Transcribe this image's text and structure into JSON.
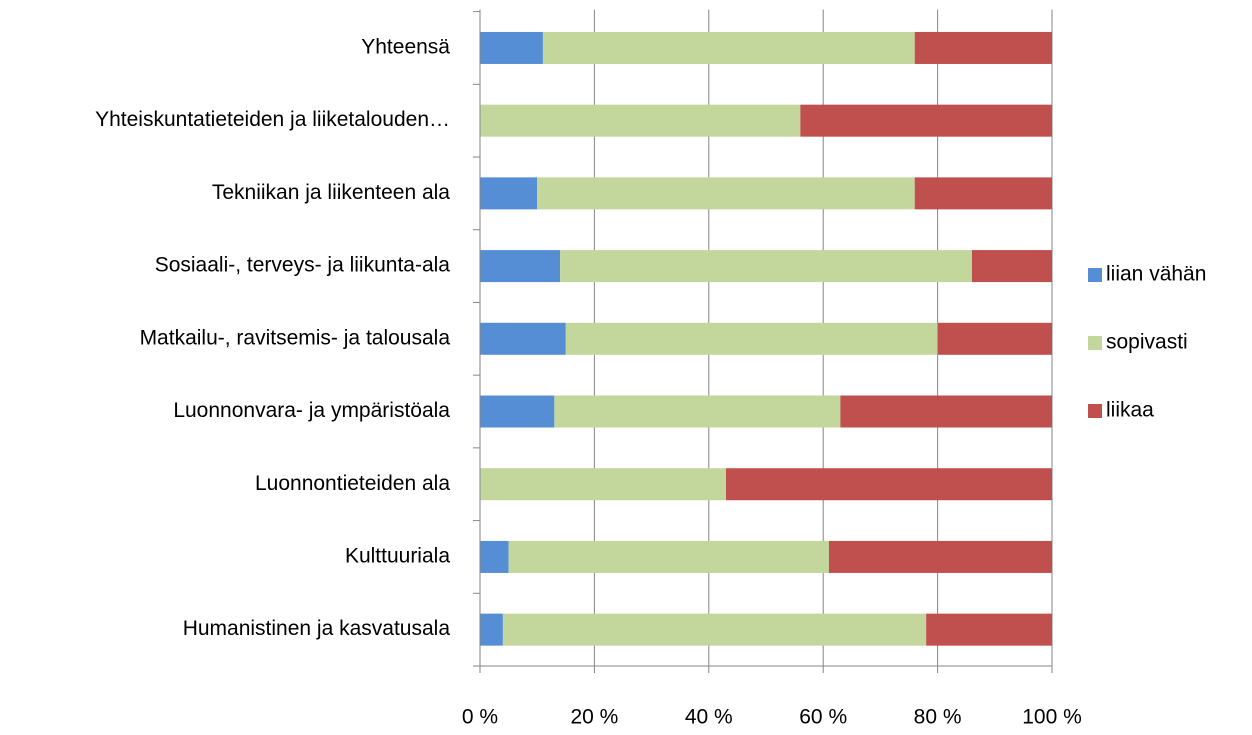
{
  "chart_data": {
    "type": "stacked_barh",
    "categories": [
      "Yhteensä",
      "Yhteiskuntatieteiden ja liiketalouden…",
      "Tekniikan ja liikenteen ala",
      "Sosiaali-, terveys- ja liikunta-ala",
      "Matkailu-, ravitsemis- ja talousala",
      "Luonnonvara- ja ympäristöala",
      "Luonnontieteiden ala",
      "Kulttuuriala",
      "Humanistinen ja kasvatusala"
    ],
    "series": [
      {
        "name": "liian vähän",
        "color": "#558ed5",
        "values": [
          11,
          0,
          10,
          14,
          15,
          13,
          0,
          5,
          4
        ]
      },
      {
        "name": "sopivasti",
        "color": "#c3d69b",
        "values": [
          65,
          56,
          66,
          72,
          65,
          50,
          43,
          56,
          74
        ]
      },
      {
        "name": "liikaa",
        "color": "#c0504d",
        "values": [
          24,
          44,
          24,
          14,
          20,
          37,
          57,
          39,
          22
        ]
      }
    ],
    "xlim": [
      0,
      100
    ],
    "xticks": [
      {
        "value": 0,
        "label": "0 %"
      },
      {
        "value": 20,
        "label": "20 %"
      },
      {
        "value": 40,
        "label": "40 %"
      },
      {
        "value": 60,
        "label": "60 %"
      },
      {
        "value": 80,
        "label": "80 %"
      },
      {
        "value": 100,
        "label": "100 %"
      }
    ],
    "grid": true,
    "legend": "right"
  }
}
